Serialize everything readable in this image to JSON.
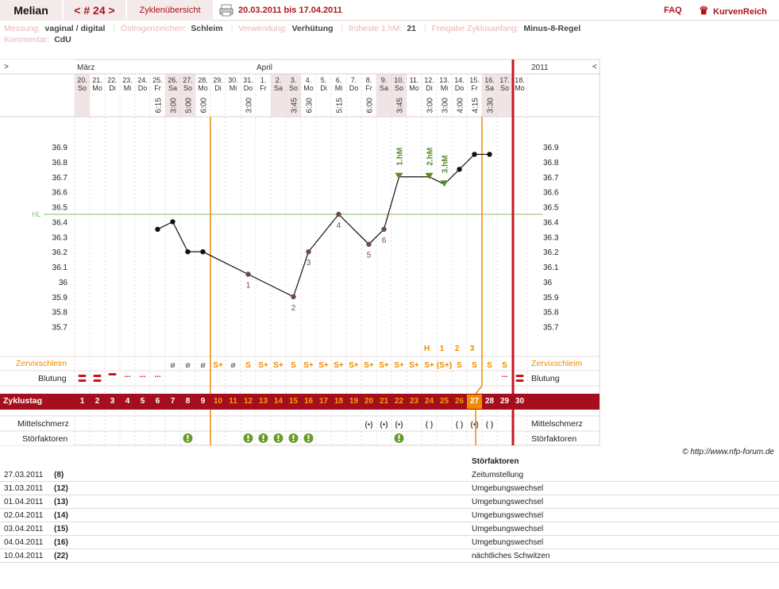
{
  "topbar": {
    "user_name": "Melian",
    "cycle_nav": "< # 24 >",
    "overview_tab": "Zyklenübersicht",
    "date_range": "20.03.2011 bis 17.04.2011",
    "faq": "FAQ",
    "brand": "KurvenReich"
  },
  "info": {
    "messung_label": "Messung:",
    "messung_value": "vaginal / digital",
    "oestrogen_label": "Östrogenzeichen:",
    "oestrogen_value": "Schleim",
    "verwendung_label": "Verwendung:",
    "verwendung_value": "Verhütung",
    "hm_label": "früheste 1.hM:",
    "hm_value": "21",
    "freigabe_label": "Freigabe Zyklusanfang:",
    "freigabe_value": "Minus-8-Regel",
    "kommentar_label": "Kommentar:",
    "kommentar_value": "CdU"
  },
  "chart": {
    "nav_left": ">",
    "nav_right": "<",
    "month_1": "März",
    "month_2": "April",
    "year": "2011",
    "hl_label": "HL",
    "y_ticks": [
      "36.9",
      "36.8",
      "36.7",
      "36.6",
      "36.5",
      "36.4",
      "36.3",
      "36.2",
      "36.1",
      "36",
      "35.9",
      "35.8",
      "35.7"
    ],
    "days": [
      {
        "d": "20.",
        "w": "So",
        "t": ""
      },
      {
        "d": "21.",
        "w": "Mo",
        "t": ""
      },
      {
        "d": "22.",
        "w": "Di",
        "t": ""
      },
      {
        "d": "23.",
        "w": "Mi",
        "t": ""
      },
      {
        "d": "24.",
        "w": "Do",
        "t": ""
      },
      {
        "d": "25.",
        "w": "Fr",
        "t": "6:15"
      },
      {
        "d": "26.",
        "w": "Sa",
        "t": "3:00"
      },
      {
        "d": "27.",
        "w": "So",
        "t": "5:00"
      },
      {
        "d": "28.",
        "w": "Mo",
        "t": "6:00"
      },
      {
        "d": "29.",
        "w": "Di",
        "t": ""
      },
      {
        "d": "30.",
        "w": "Mi",
        "t": ""
      },
      {
        "d": "31.",
        "w": "Do",
        "t": "3:00"
      },
      {
        "d": "1.",
        "w": "Fr",
        "t": ""
      },
      {
        "d": "2.",
        "w": "Sa",
        "t": ""
      },
      {
        "d": "3.",
        "w": "So",
        "t": "3:45"
      },
      {
        "d": "4.",
        "w": "Mo",
        "t": "6:30"
      },
      {
        "d": "5.",
        "w": "Di",
        "t": ""
      },
      {
        "d": "6.",
        "w": "Mi",
        "t": "5:15"
      },
      {
        "d": "7.",
        "w": "Do",
        "t": ""
      },
      {
        "d": "8.",
        "w": "Fr",
        "t": "6:00"
      },
      {
        "d": "9.",
        "w": "Sa",
        "t": ""
      },
      {
        "d": "10.",
        "w": "So",
        "t": "3:45"
      },
      {
        "d": "11.",
        "w": "Mo",
        "t": ""
      },
      {
        "d": "12.",
        "w": "Di",
        "t": "3:00"
      },
      {
        "d": "13.",
        "w": "Mi",
        "t": "3:00"
      },
      {
        "d": "14.",
        "w": "Do",
        "t": "4:00"
      },
      {
        "d": "15.",
        "w": "Fr",
        "t": "4:15"
      },
      {
        "d": "16.",
        "w": "Sa",
        "t": "3:30"
      },
      {
        "d": "17.",
        "w": "So",
        "t": ""
      },
      {
        "d": "18.",
        "w": "Mo",
        "t": ""
      }
    ],
    "temps": [
      null,
      null,
      null,
      null,
      null,
      36.35,
      36.4,
      36.2,
      36.2,
      null,
      null,
      36.05,
      null,
      null,
      35.9,
      36.2,
      null,
      36.45,
      null,
      36.25,
      36.35,
      36.7,
      null,
      36.7,
      36.65,
      36.75,
      36.85,
      36.85,
      null,
      null
    ],
    "counts": {
      "11": "1",
      "14": "2",
      "15": "3",
      "17": "4",
      "19": "5",
      "20": "6"
    },
    "hm_labels": {
      "21": "1.hM",
      "23": "2.hM",
      "24": "3.hM"
    },
    "h_labels": {
      "23": "H",
      "24": "1",
      "25": "2",
      "26": "3"
    },
    "zervix_label": "Zervixschleim",
    "blutung_label": "Blutung",
    "zyklustag_label": "Zyklustag",
    "mittelschmerz_label": "Mittelschmerz",
    "stoerfaktoren_label": "Störfaktoren",
    "zervix": [
      "",
      "",
      "",
      "",
      "",
      "",
      "ø",
      "ø",
      "ø",
      "S+",
      "ø",
      "S",
      "S+",
      "S+",
      "S",
      "S+",
      "S+",
      "S+",
      "S+",
      "S+",
      "S+",
      "S+",
      "S+",
      "S+",
      "(S+)",
      "S",
      "S",
      "S",
      "S",
      ""
    ],
    "blutung": [
      "=",
      "=",
      "-",
      "...",
      "...",
      "...",
      "",
      "",
      "",
      "",
      "",
      "",
      "",
      "",
      "",
      "",
      "",
      "",
      "",
      "",
      "",
      "",
      "",
      "",
      "",
      "",
      "",
      "",
      "...",
      "="
    ],
    "zyklustage": [
      "1",
      "2",
      "3",
      "4",
      "5",
      "6",
      "7",
      "8",
      "9",
      "10",
      "11",
      "12",
      "13",
      "14",
      "15",
      "16",
      "17",
      "18",
      "19",
      "20",
      "21",
      "22",
      "23",
      "24",
      "25",
      "26",
      "27",
      "28",
      "29",
      "30"
    ],
    "mittelschmerz": [
      "",
      "",
      "",
      "",
      "",
      "",
      "",
      "",
      "",
      "",
      "",
      "",
      "",
      "",
      "",
      "",
      "",
      "",
      "",
      "(•)",
      "(•)",
      "(•)",
      "",
      "( )",
      "",
      "( )",
      "(•)",
      "( )",
      "",
      ""
    ],
    "stoer": [
      false,
      false,
      false,
      false,
      false,
      false,
      false,
      true,
      false,
      false,
      false,
      true,
      true,
      true,
      true,
      true,
      false,
      false,
      false,
      false,
      false,
      true,
      false,
      false,
      false,
      false,
      false,
      false,
      false,
      false
    ]
  },
  "footnote": "© http://www.nfp-forum.de",
  "stoer_table": {
    "header": "Störfaktoren",
    "rows": [
      {
        "date": "27.03.2011",
        "day": "(8)",
        "desc": "Zeitumstellung"
      },
      {
        "date": "31.03.2011",
        "day": "(12)",
        "desc": "Umgebungswechsel"
      },
      {
        "date": "01.04.2011",
        "day": "(13)",
        "desc": "Umgebungswechsel"
      },
      {
        "date": "02.04.2011",
        "day": "(14)",
        "desc": "Umgebungswechsel"
      },
      {
        "date": "03.04.2011",
        "day": "(15)",
        "desc": "Umgebungswechsel"
      },
      {
        "date": "04.04.2011",
        "day": "(16)",
        "desc": "Umgebungswechsel"
      },
      {
        "date": "10.04.2011",
        "day": "(22)",
        "desc": "nächtliches Schwitzen"
      }
    ]
  },
  "colors": {
    "accent": "#b0121a",
    "bar": "#a50f1d",
    "orange": "#f08a00",
    "hl": "#8cb87a",
    "green": "#5a8a2a",
    "dot": "#6e4a4a"
  }
}
